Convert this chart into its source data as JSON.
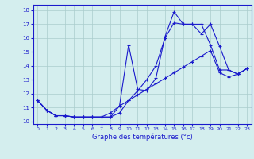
{
  "xlabel": "Graphe des températures (°c)",
  "xlim": [
    -0.5,
    23.5
  ],
  "ylim": [
    9.8,
    18.4
  ],
  "yticks": [
    10,
    11,
    12,
    13,
    14,
    15,
    16,
    17,
    18
  ],
  "xticks": [
    0,
    1,
    2,
    3,
    4,
    5,
    6,
    7,
    8,
    9,
    10,
    11,
    12,
    13,
    14,
    15,
    16,
    17,
    18,
    19,
    20,
    21,
    22,
    23
  ],
  "bg_color": "#d4eeee",
  "line_color": "#1a1acc",
  "grid_color": "#aacccc",
  "line1": [
    11.5,
    10.8,
    10.4,
    10.4,
    10.3,
    10.3,
    10.3,
    10.3,
    10.3,
    11.1,
    15.5,
    12.3,
    12.2,
    13.1,
    16.1,
    17.9,
    17.0,
    17.0,
    16.3,
    17.0,
    15.4,
    13.7,
    13.4,
    13.8
  ],
  "line2": [
    11.5,
    10.8,
    10.4,
    10.4,
    10.3,
    10.3,
    10.3,
    10.3,
    10.3,
    10.6,
    11.5,
    12.2,
    13.0,
    14.0,
    16.0,
    17.1,
    17.0,
    17.0,
    17.0,
    15.5,
    13.7,
    13.7,
    13.4,
    13.8
  ],
  "line3": [
    11.5,
    10.8,
    10.4,
    10.4,
    10.3,
    10.3,
    10.3,
    10.3,
    10.6,
    11.1,
    11.5,
    11.9,
    12.3,
    12.7,
    13.1,
    13.5,
    13.9,
    14.3,
    14.7,
    15.1,
    13.5,
    13.2,
    13.4,
    13.8
  ]
}
